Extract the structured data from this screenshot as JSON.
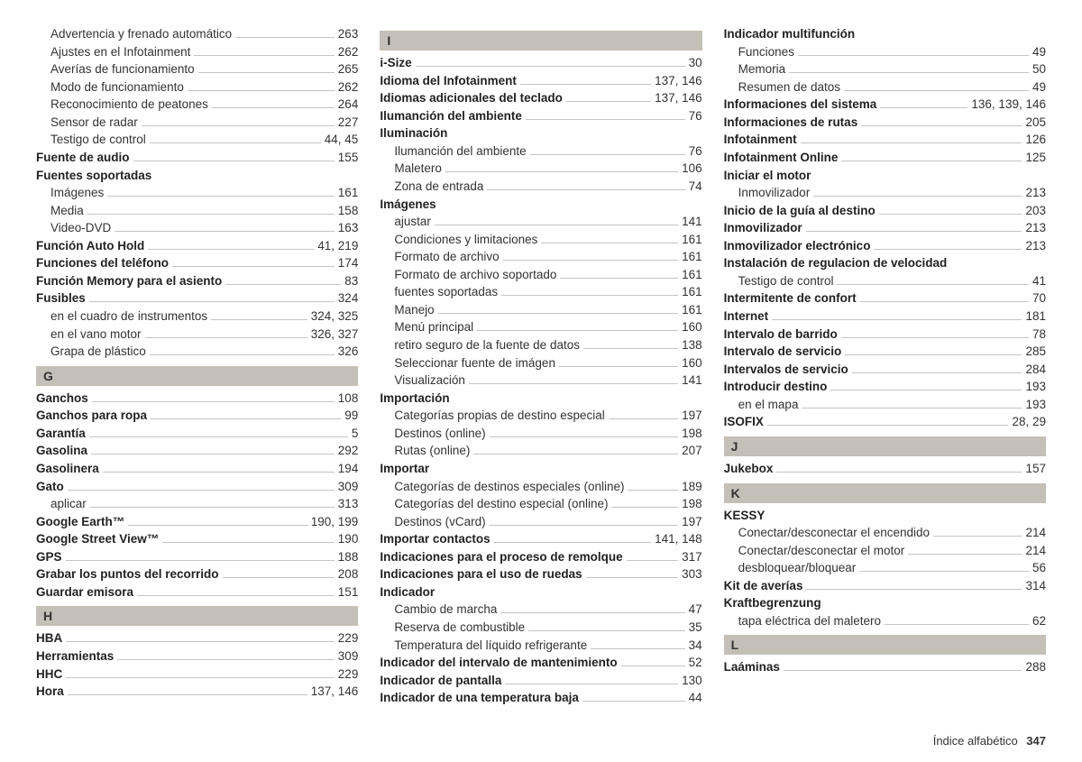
{
  "footer": {
    "label": "Índice alfabético",
    "page": "347"
  },
  "columns": [
    {
      "blocks": [
        {
          "type": "entries",
          "items": [
            {
              "label": "Advertencia y frenado automático",
              "page": "263",
              "sub": true
            },
            {
              "label": "Ajustes en el Infotainment",
              "page": "262",
              "sub": true
            },
            {
              "label": "Averías de funcionamiento",
              "page": "265",
              "sub": true
            },
            {
              "label": "Modo de funcionamiento",
              "page": "262",
              "sub": true
            },
            {
              "label": "Reconocimiento de peatones",
              "page": "264",
              "sub": true
            },
            {
              "label": "Sensor de radar",
              "page": "227",
              "sub": true
            },
            {
              "label": "Testigo de control",
              "page": "44, 45",
              "sub": true
            },
            {
              "label": "Fuente de audio",
              "page": "155",
              "bold": true
            },
            {
              "label": "Fuentes soportadas",
              "group": true
            },
            {
              "label": "Imágenes",
              "page": "161",
              "sub": true
            },
            {
              "label": "Media",
              "page": "158",
              "sub": true
            },
            {
              "label": "Video-DVD",
              "page": "163",
              "sub": true
            },
            {
              "label": "Función Auto Hold",
              "page": "41, 219",
              "bold": true
            },
            {
              "label": "Funciones del teléfono",
              "page": "174",
              "bold": true
            },
            {
              "label": "Función Memory para el asiento",
              "page": "83",
              "bold": true
            },
            {
              "label": "Fusibles",
              "page": "324",
              "bold": true
            },
            {
              "label": "en el cuadro de instrumentos",
              "page": "324, 325",
              "sub": true
            },
            {
              "label": "en el vano motor",
              "page": "326, 327",
              "sub": true
            },
            {
              "label": "Grapa de plástico",
              "page": "326",
              "sub": true
            }
          ]
        },
        {
          "type": "section",
          "letter": "G"
        },
        {
          "type": "entries",
          "items": [
            {
              "label": "Ganchos",
              "page": "108",
              "bold": true
            },
            {
              "label": "Ganchos para ropa",
              "page": "99",
              "bold": true
            },
            {
              "label": "Garantía",
              "page": "5",
              "bold": true
            },
            {
              "label": "Gasolina",
              "page": "292",
              "bold": true
            },
            {
              "label": "Gasolinera",
              "page": "194",
              "bold": true
            },
            {
              "label": "Gato",
              "page": "309",
              "bold": true
            },
            {
              "label": "aplicar",
              "page": "313",
              "sub": true
            },
            {
              "label": "Google Earth™",
              "page": "190, 199",
              "bold": true
            },
            {
              "label": "Google Street View™",
              "page": "190",
              "bold": true
            },
            {
              "label": "GPS",
              "page": "188",
              "bold": true
            },
            {
              "label": "Grabar los puntos del recorrido",
              "page": "208",
              "bold": true
            },
            {
              "label": "Guardar emisora",
              "page": "151",
              "bold": true
            }
          ]
        },
        {
          "type": "section",
          "letter": "H"
        },
        {
          "type": "entries",
          "items": [
            {
              "label": "HBA",
              "page": "229",
              "bold": true
            },
            {
              "label": "Herramientas",
              "page": "309",
              "bold": true
            },
            {
              "label": "HHC",
              "page": "229",
              "bold": true
            },
            {
              "label": "Hora",
              "page": "137, 146",
              "bold": true
            }
          ]
        }
      ]
    },
    {
      "blocks": [
        {
          "type": "section",
          "letter": "I"
        },
        {
          "type": "entries",
          "items": [
            {
              "label": "i-Size",
              "page": "30",
              "bold": true
            },
            {
              "label": "Idioma del Infotainment",
              "page": "137, 146",
              "bold": true
            },
            {
              "label": "Idiomas adicionales del teclado",
              "page": "137, 146",
              "bold": true
            },
            {
              "label": "Ilumanción del ambiente",
              "page": "76",
              "bold": true
            },
            {
              "label": "Iluminación",
              "group": true
            },
            {
              "label": "Ilumanción del ambiente",
              "page": "76",
              "sub": true
            },
            {
              "label": "Maletero",
              "page": "106",
              "sub": true
            },
            {
              "label": "Zona de entrada",
              "page": "74",
              "sub": true
            },
            {
              "label": "Imágenes",
              "group": true
            },
            {
              "label": "ajustar",
              "page": "141",
              "sub": true
            },
            {
              "label": "Condiciones y limitaciones",
              "page": "161",
              "sub": true
            },
            {
              "label": "Formato de archivo",
              "page": "161",
              "sub": true
            },
            {
              "label": "Formato de archivo soportado",
              "page": "161",
              "sub": true
            },
            {
              "label": "fuentes soportadas",
              "page": "161",
              "sub": true
            },
            {
              "label": "Manejo",
              "page": "161",
              "sub": true
            },
            {
              "label": "Menú principal",
              "page": "160",
              "sub": true
            },
            {
              "label": "retiro seguro de la fuente de datos",
              "page": "138",
              "sub": true
            },
            {
              "label": "Seleccionar fuente de imágen",
              "page": "160",
              "sub": true
            },
            {
              "label": "Visualización",
              "page": "141",
              "sub": true
            },
            {
              "label": "Importación",
              "group": true
            },
            {
              "label": "Categorías propias de destino especial",
              "page": "197",
              "sub": true
            },
            {
              "label": "Destinos (online)",
              "page": "198",
              "sub": true
            },
            {
              "label": "Rutas (online)",
              "page": "207",
              "sub": true
            },
            {
              "label": "Importar",
              "group": true
            },
            {
              "label": "Categorías de destinos especiales (online)",
              "page": "189",
              "sub": true
            },
            {
              "label": "Categorías del destino especial (online)",
              "page": "198",
              "sub": true
            },
            {
              "label": "Destinos (vCard)",
              "page": "197",
              "sub": true
            },
            {
              "label": "Importar contactos",
              "page": "141, 148",
              "bold": true
            },
            {
              "label": "Indicaciones para el proceso de remolque",
              "page": "317",
              "bold": true
            },
            {
              "label": "Indicaciones para el uso de ruedas",
              "page": "303",
              "bold": true
            },
            {
              "label": "Indicador",
              "group": true
            },
            {
              "label": "Cambio de marcha",
              "page": "47",
              "sub": true
            },
            {
              "label": "Reserva de combustible",
              "page": "35",
              "sub": true
            },
            {
              "label": "Temperatura del líquido refrigerante",
              "page": "34",
              "sub": true
            },
            {
              "label": "Indicador del intervalo de mantenimiento",
              "page": "52",
              "bold": true
            },
            {
              "label": "Indicador de pantalla",
              "page": "130",
              "bold": true
            },
            {
              "label": "Indicador de una temperatura baja",
              "page": "44",
              "bold": true
            }
          ]
        }
      ]
    },
    {
      "blocks": [
        {
          "type": "entries",
          "items": [
            {
              "label": "Indicador multifunción",
              "group": true
            },
            {
              "label": "Funciones",
              "page": "49",
              "sub": true
            },
            {
              "label": "Memoria",
              "page": "50",
              "sub": true
            },
            {
              "label": "Resumen de datos",
              "page": "49",
              "sub": true
            },
            {
              "label": "Informaciones del sistema",
              "page": "136, 139, 146",
              "bold": true
            },
            {
              "label": "Informaciones de rutas",
              "page": "205",
              "bold": true
            },
            {
              "label": "Infotainment",
              "page": "126",
              "bold": true
            },
            {
              "label": "Infotainment Online",
              "page": "125",
              "bold": true
            },
            {
              "label": "Iniciar el motor",
              "group": true
            },
            {
              "label": "Inmovilizador",
              "page": "213",
              "sub": true
            },
            {
              "label": "Inicio de la guía al destino",
              "page": "203",
              "bold": true
            },
            {
              "label": "Inmovilizador",
              "page": "213",
              "bold": true
            },
            {
              "label": "Inmovilizador electrónico",
              "page": "213",
              "bold": true
            },
            {
              "label": "Instalación de regulacion de velocidad",
              "group": true
            },
            {
              "label": "Testigo de control",
              "page": "41",
              "sub": true
            },
            {
              "label": "Intermitente de confort",
              "page": "70",
              "bold": true
            },
            {
              "label": "Internet",
              "page": "181",
              "bold": true
            },
            {
              "label": "Intervalo de barrido",
              "page": "78",
              "bold": true
            },
            {
              "label": "Intervalo de servicio",
              "page": "285",
              "bold": true
            },
            {
              "label": "Intervalos de servicio",
              "page": "284",
              "bold": true
            },
            {
              "label": "Introducir destino",
              "page": "193",
              "bold": true
            },
            {
              "label": "en el mapa",
              "page": "193",
              "sub": true
            },
            {
              "label": "ISOFIX",
              "page": "28, 29",
              "bold": true
            }
          ]
        },
        {
          "type": "section",
          "letter": "J"
        },
        {
          "type": "entries",
          "items": [
            {
              "label": "Jukebox",
              "page": "157",
              "bold": true
            }
          ]
        },
        {
          "type": "section",
          "letter": "K"
        },
        {
          "type": "entries",
          "items": [
            {
              "label": "KESSY",
              "group": true
            },
            {
              "label": "Conectar/desconectar el encendido",
              "page": "214",
              "sub": true
            },
            {
              "label": "Conectar/desconectar el motor",
              "page": "214",
              "sub": true
            },
            {
              "label": "desbloquear/bloquear",
              "page": "56",
              "sub": true
            },
            {
              "label": "Kit de averías",
              "page": "314",
              "bold": true
            },
            {
              "label": "Kraftbegrenzung",
              "group": true
            },
            {
              "label": "tapa eléctrica del maletero",
              "page": "62",
              "sub": true
            }
          ]
        },
        {
          "type": "section",
          "letter": "L"
        },
        {
          "type": "entries",
          "items": [
            {
              "label": "Laáminas",
              "page": "288",
              "bold": true
            }
          ]
        }
      ]
    }
  ]
}
